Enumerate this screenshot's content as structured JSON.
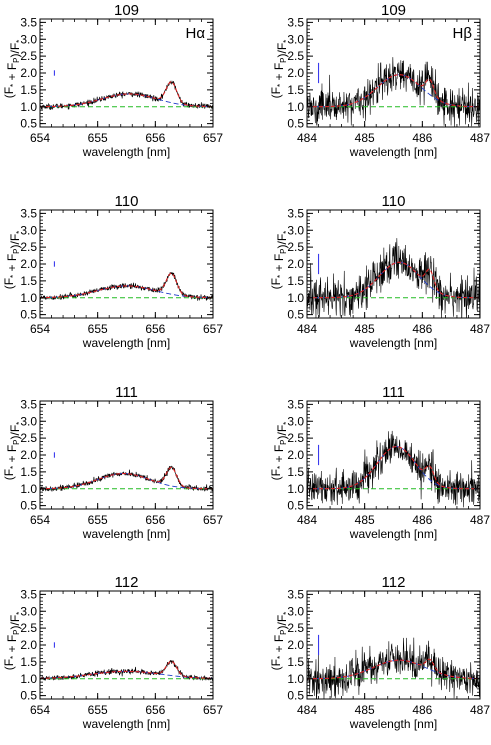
{
  "chart_data": [
    {
      "type": "line",
      "title": "109",
      "annotation": "Hα",
      "xlabel": "wavelength [nm]",
      "ylabel": "(F* + FP)/F*",
      "xlim": [
        654,
        657
      ],
      "ylim": [
        0.4,
        3.6
      ],
      "xticks": [
        654,
        655,
        656,
        657
      ],
      "yticks": [
        0.5,
        1.0,
        1.5,
        2.0,
        2.5,
        3.0,
        3.5
      ],
      "error_bar": {
        "x": 654.25,
        "y": 2.0,
        "half": 0.08
      },
      "features": {
        "broad": {
          "center": 655.55,
          "amp": 0.38,
          "width": 0.48
        },
        "narrow": {
          "center": 656.28,
          "amp": 0.62,
          "width": 0.09
        },
        "noise": 0.04
      }
    },
    {
      "type": "line",
      "title": "109",
      "annotation": "Hβ",
      "xlabel": "wavelength [nm]",
      "ylabel": "(F* + FP)/F*",
      "xlim": [
        484,
        487
      ],
      "ylim": [
        0.4,
        3.6
      ],
      "xticks": [
        484,
        485,
        486,
        487
      ],
      "yticks": [
        0.5,
        1.0,
        1.5,
        2.0,
        2.5,
        3.0,
        3.5
      ],
      "error_bar": {
        "x": 484.2,
        "y": 2.0,
        "half": 0.3
      },
      "features": {
        "broad": {
          "center": 485.6,
          "amp": 0.95,
          "width": 0.38
        },
        "narrow": {
          "center": 486.13,
          "amp": 0.45,
          "width": 0.07
        },
        "noise": 0.28
      }
    },
    {
      "type": "line",
      "title": "110",
      "annotation": "",
      "xlabel": "wavelength [nm]",
      "ylabel": "(F* + FP)/F*",
      "xlim": [
        654,
        657
      ],
      "ylim": [
        0.4,
        3.6
      ],
      "xticks": [
        654,
        655,
        656,
        657
      ],
      "yticks": [
        0.5,
        1.0,
        1.5,
        2.0,
        2.5,
        3.0,
        3.5
      ],
      "error_bar": {
        "x": 654.25,
        "y": 2.0,
        "half": 0.08
      },
      "features": {
        "broad": {
          "center": 655.5,
          "amp": 0.35,
          "width": 0.5
        },
        "narrow": {
          "center": 656.28,
          "amp": 0.62,
          "width": 0.09
        },
        "noise": 0.04
      }
    },
    {
      "type": "line",
      "title": "110",
      "annotation": "",
      "xlabel": "wavelength [nm]",
      "ylabel": "(F* + FP)/F*",
      "xlim": [
        484,
        487
      ],
      "ylim": [
        0.4,
        3.6
      ],
      "xticks": [
        484,
        485,
        486,
        487
      ],
      "yticks": [
        0.5,
        1.0,
        1.5,
        2.0,
        2.5,
        3.0,
        3.5
      ],
      "error_bar": {
        "x": 484.2,
        "y": 2.0,
        "half": 0.3
      },
      "features": {
        "broad": {
          "center": 485.6,
          "amp": 1.05,
          "width": 0.35
        },
        "narrow": {
          "center": 486.13,
          "amp": 0.5,
          "width": 0.07
        },
        "noise": 0.3
      }
    },
    {
      "type": "line",
      "title": "111",
      "annotation": "",
      "xlabel": "wavelength [nm]",
      "ylabel": "(F* + FP)/F*",
      "xlim": [
        654,
        657
      ],
      "ylim": [
        0.4,
        3.6
      ],
      "xticks": [
        654,
        655,
        656,
        657
      ],
      "yticks": [
        0.5,
        1.0,
        1.5,
        2.0,
        2.5,
        3.0,
        3.5
      ],
      "error_bar": {
        "x": 654.25,
        "y": 2.0,
        "half": 0.08
      },
      "features": {
        "broad": {
          "center": 655.45,
          "amp": 0.45,
          "width": 0.45
        },
        "narrow": {
          "center": 656.28,
          "amp": 0.55,
          "width": 0.09
        },
        "noise": 0.04
      }
    },
    {
      "type": "line",
      "title": "111",
      "annotation": "",
      "xlabel": "wavelength [nm]",
      "ylabel": "(F* + FP)/F*",
      "xlim": [
        484,
        487
      ],
      "ylim": [
        0.4,
        3.6
      ],
      "xticks": [
        484,
        485,
        486,
        487
      ],
      "yticks": [
        0.5,
        1.0,
        1.5,
        2.0,
        2.5,
        3.0,
        3.5
      ],
      "error_bar": {
        "x": 484.2,
        "y": 2.0,
        "half": 0.3
      },
      "features": {
        "broad": {
          "center": 485.55,
          "amp": 1.25,
          "width": 0.33
        },
        "narrow": {
          "center": 486.13,
          "amp": 0.4,
          "width": 0.07
        },
        "noise": 0.25
      }
    },
    {
      "type": "line",
      "title": "112",
      "annotation": "",
      "xlabel": "wavelength [nm]",
      "ylabel": "(F* + FP)/F*",
      "xlim": [
        654,
        657
      ],
      "ylim": [
        0.4,
        3.6
      ],
      "xticks": [
        654,
        655,
        656,
        657
      ],
      "yticks": [
        0.5,
        1.0,
        1.5,
        2.0,
        2.5,
        3.0,
        3.5
      ],
      "error_bar": {
        "x": 654.25,
        "y": 2.0,
        "half": 0.08
      },
      "features": {
        "broad": {
          "center": 655.5,
          "amp": 0.22,
          "width": 0.6
        },
        "narrow": {
          "center": 656.28,
          "amp": 0.42,
          "width": 0.09
        },
        "noise": 0.035
      }
    },
    {
      "type": "line",
      "title": "112",
      "annotation": "",
      "xlabel": "wavelength [nm]",
      "ylabel": "(F* + FP)/F*",
      "xlim": [
        484,
        487
      ],
      "ylim": [
        0.4,
        3.6
      ],
      "xticks": [
        484,
        485,
        486,
        487
      ],
      "yticks": [
        0.5,
        1.0,
        1.5,
        2.0,
        2.5,
        3.0,
        3.5
      ],
      "error_bar": {
        "x": 484.2,
        "y": 2.0,
        "half": 0.3
      },
      "features": {
        "broad": {
          "center": 485.6,
          "amp": 0.55,
          "width": 0.45
        },
        "narrow": {
          "center": 486.13,
          "amp": 0.3,
          "width": 0.07
        },
        "noise": 0.25
      }
    }
  ],
  "colors": {
    "data": "#000000",
    "fit": "#dd2222",
    "broad_component": "#1e3cc8",
    "baseline": "#22bb22",
    "error_bar": "#3a3aee"
  }
}
